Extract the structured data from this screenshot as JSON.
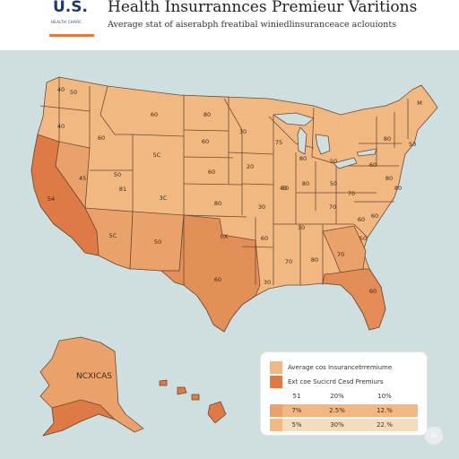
{
  "header": {
    "logo_main": "U.S.",
    "logo_sub": "HEALTH CHARC",
    "title": "Health Insurrannces Premieur Varitions",
    "subtitle": "Average stat of aiserabph freatibal winiedlinsuranceace aclouionts"
  },
  "colors": {
    "ocean": "#cfdfe0",
    "light_tier": "#f2b882",
    "mid_tier": "#eaa26a",
    "dark_tier": "#de7a45",
    "border": "#6b4a36"
  },
  "state_labels": [
    {
      "id": "wa",
      "text": "50"
    },
    {
      "id": "wa2",
      "text": "40"
    },
    {
      "id": "or",
      "text": "40"
    },
    {
      "id": "id",
      "text": "60"
    },
    {
      "id": "mt",
      "text": "60"
    },
    {
      "id": "nd",
      "text": "80"
    },
    {
      "id": "sd",
      "text": "60"
    },
    {
      "id": "mn",
      "text": "30"
    },
    {
      "id": "wy",
      "text": "5C"
    },
    {
      "id": "ne",
      "text": "60"
    },
    {
      "id": "nv",
      "text": "45"
    },
    {
      "id": "ut",
      "text": "81"
    },
    {
      "id": "ut2",
      "text": "50"
    },
    {
      "id": "co",
      "text": "3C"
    },
    {
      "id": "ca",
      "text": "54"
    },
    {
      "id": "az",
      "text": "5C"
    },
    {
      "id": "nm",
      "text": "50"
    },
    {
      "id": "ks",
      "text": "80"
    },
    {
      "id": "ok",
      "text": "0X"
    },
    {
      "id": "tx",
      "text": "60"
    },
    {
      "id": "ia",
      "text": "20"
    },
    {
      "id": "mo",
      "text": "30"
    },
    {
      "id": "ar",
      "text": "60"
    },
    {
      "id": "il",
      "text": "30"
    },
    {
      "id": "in",
      "text": "80"
    },
    {
      "id": "oh",
      "text": "50"
    },
    {
      "id": "wi",
      "text": "75"
    },
    {
      "id": "mi",
      "text": "40"
    },
    {
      "id": "ky",
      "text": "70"
    },
    {
      "id": "tn",
      "text": "30"
    },
    {
      "id": "ms",
      "text": "70"
    },
    {
      "id": "al",
      "text": "80"
    },
    {
      "id": "ga",
      "text": "70"
    },
    {
      "id": "la",
      "text": "30"
    },
    {
      "id": "fl",
      "text": "60"
    },
    {
      "id": "sc",
      "text": "50"
    },
    {
      "id": "nc",
      "text": "60"
    },
    {
      "id": "va",
      "text": "60"
    },
    {
      "id": "wv",
      "text": "70"
    },
    {
      "id": "pa",
      "text": "60"
    },
    {
      "id": "ny",
      "text": "80"
    },
    {
      "id": "me",
      "text": "M"
    },
    {
      "id": "vt",
      "text": "50"
    },
    {
      "id": "ma",
      "text": "80"
    },
    {
      "id": "md",
      "text": "80"
    },
    {
      "id": "wi2",
      "text": "80"
    },
    {
      "id": "mi2",
      "text": "50"
    }
  ],
  "alaska_label": "NCXICAS",
  "legend": {
    "row1": "Average cos Insurancetrremiume",
    "row2": "Ext coe Sucicrd Cesd Premiurs",
    "row3": [
      "51",
      "20%",
      "10%"
    ],
    "row4": [
      "7%",
      "2.5%",
      "12.%"
    ],
    "row5": [
      "5%",
      "30%",
      "22.%"
    ]
  },
  "badge": "ai"
}
